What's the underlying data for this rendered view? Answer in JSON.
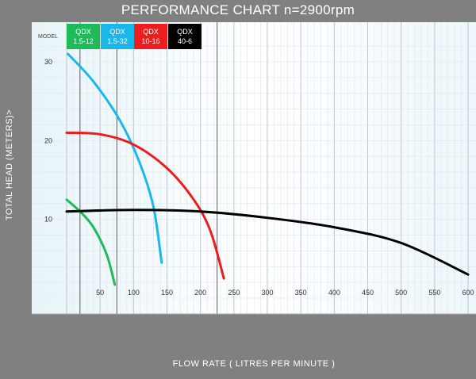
{
  "chart_data": {
    "type": "line",
    "title": "PERFORMANCE CHART n=2900rpm",
    "xlabel": "FLOW RATE ( LITRES PER MINUTE )",
    "ylabel": "TOTAL HEAD (METERS)>",
    "legend_header": "MODEL",
    "xlim": [
      0,
      600
    ],
    "ylim": [
      0,
      33
    ],
    "x_ticks": [
      50,
      100,
      150,
      200,
      250,
      300,
      350,
      400,
      450,
      500,
      550,
      600
    ],
    "y_ticks": [
      10,
      20,
      30
    ],
    "grid": true,
    "legend_placement": "top-left",
    "series": [
      {
        "name_line1": "QDX",
        "name_line2": "1.5-12",
        "color": "#1dbb5a",
        "x": [
          0,
          20,
          40,
          60,
          72
        ],
        "y": [
          12.5,
          11,
          9,
          5.5,
          1.7
        ]
      },
      {
        "name_line1": "QDX",
        "name_line2": "1.5-32",
        "color": "#1ab7ea",
        "x": [
          2,
          40,
          80,
          110,
          130,
          142
        ],
        "y": [
          31,
          27.5,
          22.5,
          17,
          11.5,
          4.5
        ]
      },
      {
        "name_line1": "QDX",
        "name_line2": "10-16",
        "color": "#ee1c1c",
        "x": [
          0,
          50,
          100,
          150,
          190,
          215,
          235
        ],
        "y": [
          21,
          20.8,
          19.5,
          16.5,
          12.5,
          8.5,
          2.5
        ]
      },
      {
        "name_line1": "QDX",
        "name_line2": "40-6",
        "color": "#000000",
        "x": [
          0,
          100,
          200,
          300,
          400,
          500,
          600
        ],
        "y": [
          11,
          11.2,
          11,
          10.2,
          9,
          7,
          3
        ]
      }
    ]
  }
}
